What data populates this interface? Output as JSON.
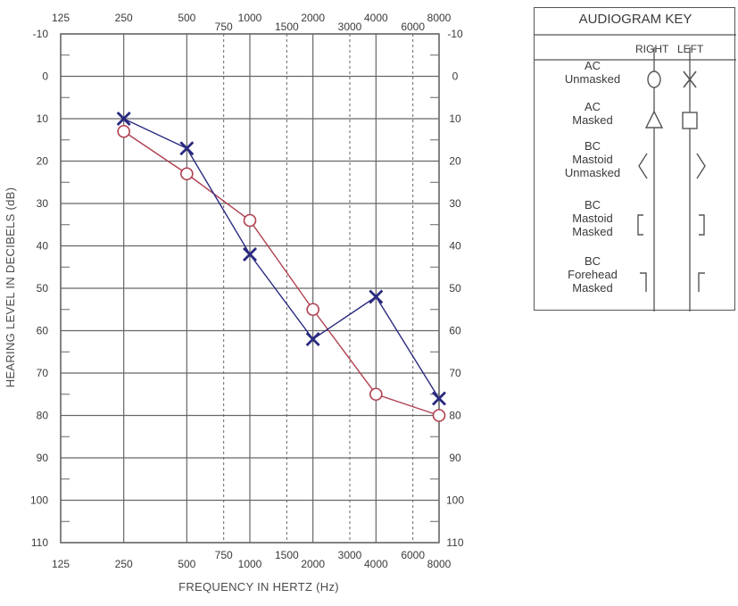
{
  "chart_data": {
    "type": "line",
    "xlabel": "FREQUENCY IN HERTZ (Hz)",
    "ylabel": "HEARING LEVEL IN DECIBELS (dB)",
    "x_scale": "log",
    "y_inverted": true,
    "ylim": [
      -10,
      110
    ],
    "x_ticks": [
      "125",
      "250",
      "500",
      "750",
      "1000",
      "1500",
      "2000",
      "3000",
      "4000",
      "6000",
      "8000"
    ],
    "x_tick_values": [
      125,
      250,
      500,
      750,
      1000,
      1500,
      2000,
      3000,
      4000,
      6000,
      8000
    ],
    "x_tick_style": [
      "solid",
      "solid",
      "solid",
      "dashed",
      "solid",
      "dashed",
      "solid",
      "dashed",
      "solid",
      "dashed",
      "solid"
    ],
    "y_ticks": [
      "-10",
      "0",
      "10",
      "20",
      "30",
      "40",
      "50",
      "60",
      "70",
      "80",
      "90",
      "100",
      "110"
    ],
    "y_tick_values": [
      -10,
      0,
      10,
      20,
      30,
      40,
      50,
      60,
      70,
      80,
      90,
      100,
      110
    ],
    "grid": true,
    "series": [
      {
        "marker": "circle",
        "color": "#b04050",
        "x": [
          250,
          500,
          1000,
          2000,
          4000,
          8000
        ],
        "y": [
          13,
          23,
          34,
          55,
          75,
          80
        ]
      },
      {
        "marker": "x",
        "color": "#2a2a80",
        "x": [
          250,
          500,
          1000,
          2000,
          4000,
          8000
        ],
        "y": [
          10,
          17,
          42,
          62,
          52,
          76
        ]
      }
    ]
  },
  "key": {
    "title": "AUDIOGRAM KEY",
    "right_label": "RIGHT",
    "left_label": "LEFT",
    "rows": [
      {
        "lines": [
          "AC",
          "Unmasked"
        ],
        "right_symbol": "circle",
        "left_symbol": "x"
      },
      {
        "lines": [
          "AC",
          "Masked"
        ],
        "right_symbol": "triangle",
        "left_symbol": "square"
      },
      {
        "lines": [
          "BC",
          "Mastoid",
          "Unmasked"
        ],
        "right_symbol": "angle-left",
        "left_symbol": "angle-right"
      },
      {
        "lines": [
          "BC",
          "Mastoid",
          "Masked"
        ],
        "right_symbol": "bracket-left",
        "left_symbol": "bracket-right"
      },
      {
        "lines": [
          "BC",
          "Forehead",
          "Masked"
        ],
        "right_symbol": "corner-right",
        "left_symbol": "corner-left"
      }
    ]
  },
  "colors": {
    "grid": "#666666",
    "text": "#3a3a3a",
    "right_ear": "#b04050",
    "left_ear": "#2a2a80"
  }
}
